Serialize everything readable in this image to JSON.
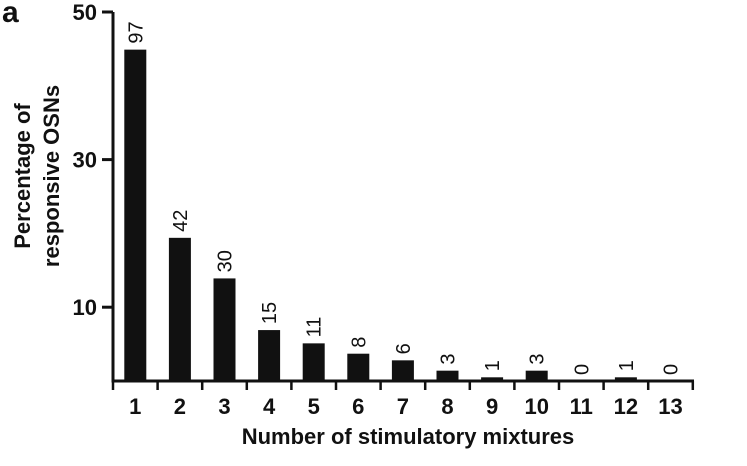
{
  "panel_label": "a",
  "colors": {
    "bar": "#111111",
    "axis": "#111111",
    "text": "#111111",
    "background": "#ffffff"
  },
  "chart_data": {
    "type": "bar",
    "title": "",
    "xlabel": "Number of stimulatory mixtures",
    "ylabel_lines": [
      "Percentage of",
      "responsive OSNs"
    ],
    "categories": [
      "1",
      "2",
      "3",
      "4",
      "5",
      "6",
      "7",
      "8",
      "9",
      "10",
      "11",
      "12",
      "13"
    ],
    "values": [
      44.9,
      19.4,
      13.9,
      6.9,
      5.1,
      3.7,
      2.8,
      1.4,
      0.5,
      1.4,
      0,
      0.5,
      0
    ],
    "bar_labels": [
      "97",
      "42",
      "30",
      "15",
      "11",
      "8",
      "6",
      "3",
      "1",
      "3",
      "0",
      "1",
      "0"
    ],
    "ylim": [
      0,
      50
    ],
    "y_ticks": [
      10,
      30,
      50
    ],
    "y_tick_labels": [
      "10",
      "30",
      "50"
    ],
    "grid": false,
    "legend": "none"
  }
}
